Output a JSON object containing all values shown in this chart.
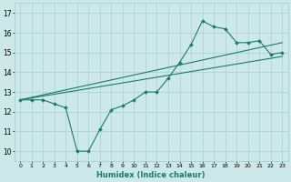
{
  "xlabel": "Humidex (Indice chaleur)",
  "ylabel": "",
  "xlim": [
    -0.5,
    23.5
  ],
  "ylim": [
    9.5,
    17.5
  ],
  "xticks": [
    0,
    1,
    2,
    3,
    4,
    5,
    6,
    7,
    8,
    9,
    10,
    11,
    12,
    13,
    14,
    15,
    16,
    17,
    18,
    19,
    20,
    21,
    22,
    23
  ],
  "yticks": [
    10,
    11,
    12,
    13,
    14,
    15,
    16,
    17
  ],
  "bg_color": "#cce8e8",
  "line_color": "#1a7a6e",
  "grid_color": "#aacfcf",
  "series": [
    {
      "x": [
        0,
        1,
        2,
        3,
        4,
        5,
        6,
        7,
        8,
        9,
        10,
        11,
        12,
        13,
        14,
        15,
        16,
        17,
        18,
        19,
        20,
        21,
        22,
        23
      ],
      "y": [
        12.6,
        12.6,
        12.6,
        12.4,
        12.2,
        10.0,
        10.0,
        11.1,
        12.1,
        12.3,
        12.6,
        13.0,
        13.0,
        13.7,
        14.5,
        15.4,
        16.6,
        16.3,
        16.2,
        15.5,
        15.5,
        15.6,
        14.9,
        15.0
      ],
      "marker": true
    },
    {
      "x": [
        0,
        23
      ],
      "y": [
        12.6,
        15.5
      ],
      "marker": false
    },
    {
      "x": [
        0,
        23
      ],
      "y": [
        12.6,
        14.8
      ],
      "marker": false
    }
  ]
}
